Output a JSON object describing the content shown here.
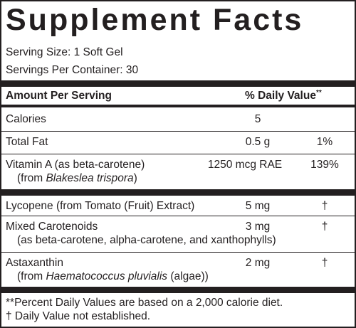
{
  "title": "Supplement Facts",
  "serving_size": "Serving Size: 1 Soft Gel",
  "servings_per_container": "Servings Per Container: 30",
  "header": {
    "amount_per_serving": "Amount Per Serving",
    "daily_value": "% Daily Value",
    "daily_value_mark": "**"
  },
  "rows": [
    {
      "name": "Calories",
      "amount": "5",
      "dv": ""
    },
    {
      "name": "Total Fat",
      "amount": "0.5 g",
      "dv": "1%"
    },
    {
      "name": "Vitamin A (as beta-carotene)",
      "sub_prefix": "(from ",
      "sub_italic": "Blakeslea trispora",
      "sub_suffix": ")",
      "amount": "1250 mcg RAE",
      "dv": "139%"
    },
    {
      "name": "Lycopene (from Tomato (Fruit) Extract)",
      "amount": "5 mg",
      "dv": "†"
    },
    {
      "name": "Mixed Carotenoids",
      "sub": "(as beta-carotene, alpha-carotene, and xanthophylls)",
      "amount": "3 mg",
      "dv": "†"
    },
    {
      "name": "Astaxanthin",
      "sub_prefix": "(from ",
      "sub_italic": "Haematococcus pluvialis",
      "sub_suffix": " (algae))",
      "amount": "2 mg",
      "dv": "†"
    }
  ],
  "footnotes": [
    "**Percent Daily Values are based on a 2,000 calorie diet.",
    "† Daily Value not established."
  ]
}
